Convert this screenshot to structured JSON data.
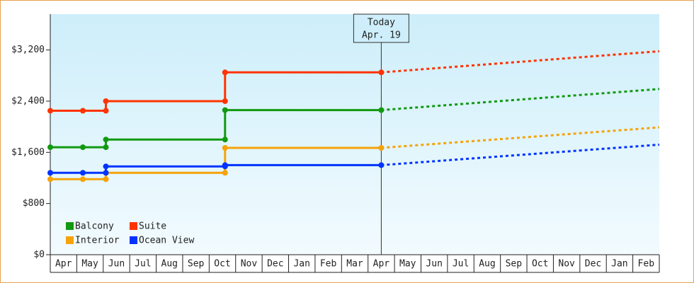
{
  "chart_data": {
    "type": "line",
    "step": true,
    "categories": [
      "Apr",
      "May",
      "Jun",
      "Jul",
      "Aug",
      "Sep",
      "Oct",
      "Nov",
      "Dec",
      "Jan",
      "Feb",
      "Mar",
      "Apr",
      "May",
      "Jun",
      "Jul",
      "Aug",
      "Sep",
      "Oct",
      "Nov",
      "Dec",
      "Jan",
      "Feb"
    ],
    "x": [
      0,
      1.23,
      2.1,
      2.1,
      6.6,
      6.6,
      12.5,
      23
    ],
    "xlim": [
      0,
      23
    ],
    "ylim": [
      0,
      3760
    ],
    "yticks": [
      {
        "value": 0,
        "label": "$0"
      },
      {
        "value": 800,
        "label": "$800"
      },
      {
        "value": 1600,
        "label": "$1,600"
      },
      {
        "value": 2400,
        "label": "$2,400"
      },
      {
        "value": 3200,
        "label": "$3,200"
      }
    ],
    "annotation": {
      "text": "Today",
      "date": "Apr. 19",
      "x": 12.5
    },
    "legend": "bottom-left",
    "series": [
      {
        "name": "Balcony",
        "color": "#119911",
        "values": [
          1680,
          1680,
          1680,
          1800,
          1800,
          2260,
          2260,
          2590
        ]
      },
      {
        "name": "Suite",
        "color": "#ff3300",
        "values": [
          2250,
          2250,
          2250,
          2400,
          2400,
          2850,
          2850,
          3180
        ]
      },
      {
        "name": "Interior",
        "color": "#f5a30a",
        "values": [
          1180,
          1180,
          1180,
          1280,
          1280,
          1670,
          1670,
          1990
        ]
      },
      {
        "name": "Ocean View",
        "color": "#0033ff",
        "values": [
          1280,
          1280,
          1280,
          1380,
          1380,
          1400,
          1400,
          1720
        ]
      }
    ]
  }
}
